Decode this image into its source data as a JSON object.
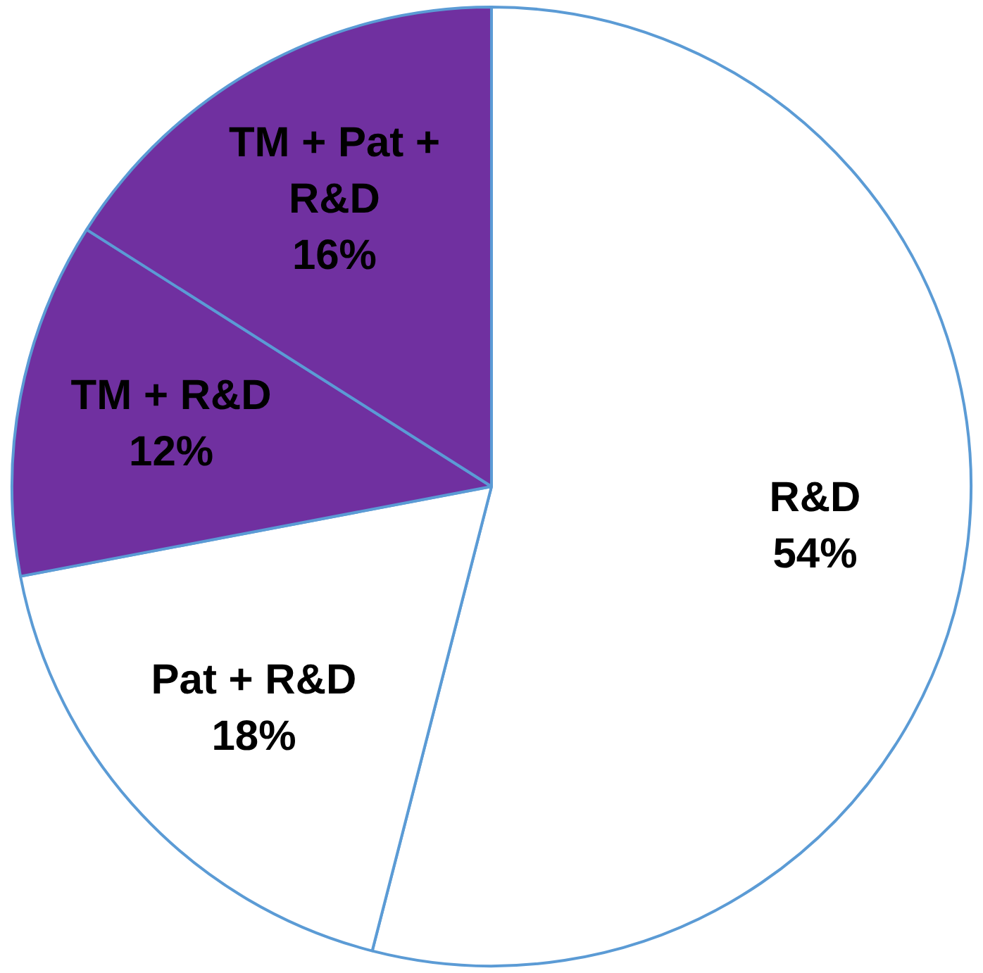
{
  "chart_data": {
    "type": "pie",
    "categories": [
      "R&D",
      "Pat + R&D",
      "TM + R&D",
      "TM + Pat + R&D"
    ],
    "values": [
      54,
      18,
      12,
      16
    ],
    "value_labels": [
      "54%",
      "18%",
      "12%",
      "16%"
    ],
    "colors": [
      "#ffffff",
      "#ffffff",
      "#7030a0",
      "#7030a0"
    ],
    "legend": false
  }
}
